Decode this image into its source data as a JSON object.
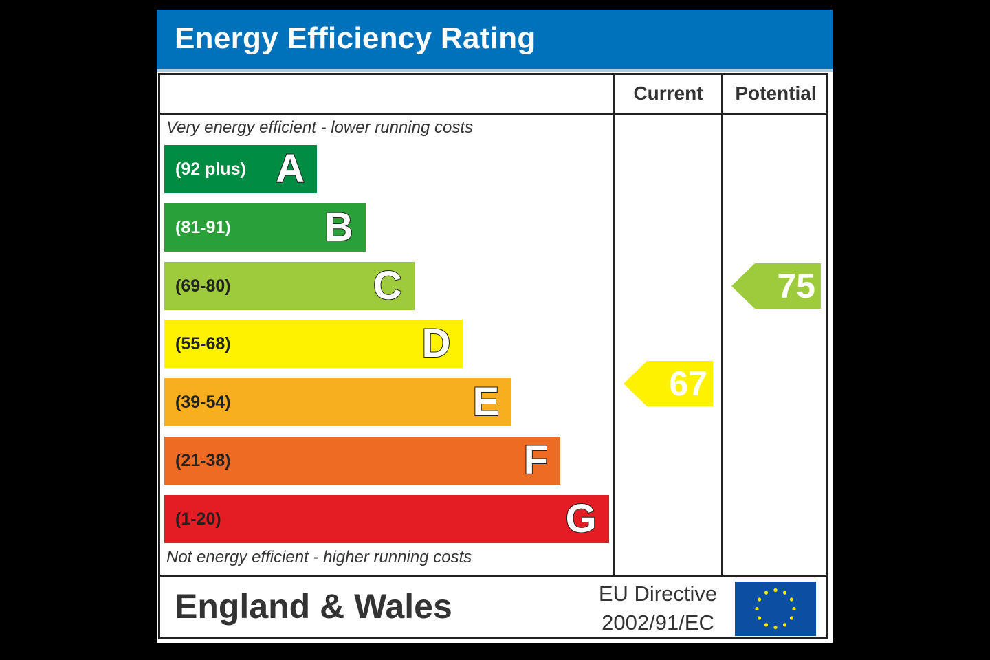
{
  "header": {
    "title": "Energy Efficiency Rating"
  },
  "columns": {
    "current": "Current",
    "potential": "Potential"
  },
  "notes": {
    "top": "Very energy efficient - lower running costs",
    "bottom": "Not energy efficient - higher running costs"
  },
  "chart_data": {
    "type": "bar",
    "title": "Energy Efficiency Rating",
    "categories": [
      "A",
      "B",
      "C",
      "D",
      "E",
      "F",
      "G"
    ],
    "ranges": [
      "(92 plus)",
      "(81-91)",
      "(69-80)",
      "(55-68)",
      "(39-54)",
      "(21-38)",
      "(1-20)"
    ],
    "colors": [
      "#008c43",
      "#2aa138",
      "#9dcb3c",
      "#fff200",
      "#f7ae1f",
      "#ed6b22",
      "#e31d23"
    ],
    "current": {
      "value": 67,
      "band": "D",
      "color": "#fff200"
    },
    "potential": {
      "value": 75,
      "band": "C",
      "color": "#9dcb3c"
    }
  },
  "footer": {
    "region": "England & Wales",
    "directive_line1": "EU Directive",
    "directive_line2": "2002/91/EC",
    "flag_icon": "eu-flag-icon"
  }
}
